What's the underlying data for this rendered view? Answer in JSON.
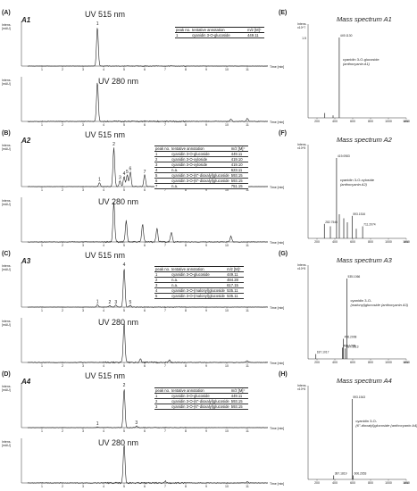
{
  "panels": [
    {
      "label": "(A)",
      "name": "A1",
      "uv515": "UV 515 nm",
      "uv280": "UV 280 nm"
    },
    {
      "label": "(B)",
      "name": "A2",
      "uv515": "UV 515 nm",
      "uv280": "UV 280 nm"
    },
    {
      "label": "(C)",
      "name": "A3",
      "uv515": "UV 515 nm",
      "uv280": "UV 280 nm"
    },
    {
      "label": "(D)",
      "name": "A4",
      "uv515": "UV 515 nm",
      "uv280": "UV 280 nm"
    }
  ],
  "ms_panels": [
    {
      "label": "(E)",
      "title": "Mass spectrum A1"
    },
    {
      "label": "(F)",
      "title": "Mass spectrum A2"
    },
    {
      "label": "(G)",
      "title": "Mass spectrum A3"
    },
    {
      "label": "(H)",
      "title": "Mass spectrum A4"
    }
  ],
  "axis_text": {
    "intens": "Intens.",
    "mau": "[mAU]",
    "x10": "x10",
    "time": "Time [min]"
  },
  "tables": [
    {
      "header": [
        "peak no.",
        "tentative annotation",
        "m/z [M]⁺"
      ],
      "rows": [
        [
          "1",
          "cyanidin 3-O-glucoside",
          "449.11"
        ]
      ]
    },
    {
      "header": [
        "peak no.",
        "tentative annotation",
        "m/z [M]⁺"
      ],
      "rows": [
        [
          "1",
          "cyanidin 3-O-glucoside",
          "449.11"
        ],
        [
          "2",
          "cyanidin 3-O-xyloside",
          "419.10"
        ],
        [
          "3",
          "cyanidin 3-O-xyloside",
          "419.10"
        ],
        [
          "4",
          "n.a.",
          "623.11"
        ],
        [
          "5",
          "cyanidin 3-O-(6''-dioxalyl)glucoside",
          "593.15"
        ],
        [
          "6",
          "cyanidin 3-O-(6''-dioxalyl)glucoside",
          "593.15"
        ],
        [
          "7",
          "n.a.",
          "751.15"
        ]
      ]
    },
    {
      "header": [
        "peak no.",
        "tentative annotation",
        "m/z [M]⁺"
      ],
      "rows": [
        [
          "1",
          "cyanidin 3-O-glucoside",
          "449.11"
        ],
        [
          "2",
          "n.a.",
          "484.28"
        ],
        [
          "3",
          "n.a.",
          "617.15"
        ],
        [
          "4",
          "cyanidin 3-O-(malonyl)glucoside",
          "535.11"
        ],
        [
          "5",
          "cyanidin 3-O-(malonyl)glucoside",
          "535.11"
        ]
      ]
    },
    {
      "header": [
        "peak no.",
        "tentative annotation",
        "m/z [M]⁺"
      ],
      "rows": [
        [
          "1",
          "cyanidin 3-O-glucoside",
          "449.11"
        ],
        [
          "2",
          "cyanidin 3-O-(6''-dioxalyl)glucoside",
          "593.15"
        ],
        [
          "3",
          "cyanidin 3-O-(6''-dioxalyl)glucoside",
          "593.15"
        ]
      ]
    }
  ],
  "chart_data": [
    {
      "type": "line",
      "title": "UV 515 nm",
      "panel": "A1",
      "xlabel": "Time [min]",
      "ylabel": "Intens. [mAU]",
      "xlim": [
        0,
        12
      ],
      "x": [
        1,
        2,
        3,
        4,
        5,
        6,
        7,
        8,
        9,
        10,
        11
      ],
      "peaks": [
        {
          "t": 3.7,
          "h": 1.0,
          "label": "1"
        }
      ]
    },
    {
      "type": "line",
      "title": "UV 280 nm",
      "panel": "A1",
      "xlabel": "Time [min]",
      "ylabel": "Intens. [mAU]",
      "xlim": [
        0,
        12
      ],
      "peaks": [
        {
          "t": 3.7,
          "h": 1.0
        },
        {
          "t": 10.2,
          "h": 0.06
        },
        {
          "t": 11.0,
          "h": 0.08
        }
      ]
    },
    {
      "type": "line",
      "title": "UV 515 nm",
      "panel": "A2",
      "xlim": [
        0,
        12
      ],
      "peaks": [
        {
          "t": 3.8,
          "h": 0.1,
          "label": "1"
        },
        {
          "t": 4.5,
          "h": 1.0,
          "label": "2"
        },
        {
          "t": 4.8,
          "h": 0.15,
          "label": "3"
        },
        {
          "t": 5.0,
          "h": 0.25,
          "label": "4"
        },
        {
          "t": 5.15,
          "h": 0.3,
          "label": "5"
        },
        {
          "t": 5.3,
          "h": 0.38,
          "label": "6"
        },
        {
          "t": 6.0,
          "h": 0.3,
          "label": "7"
        }
      ]
    },
    {
      "type": "line",
      "title": "UV 280 nm",
      "panel": "A2",
      "xlim": [
        0,
        12
      ],
      "peaks": [
        {
          "t": 4.5,
          "h": 1.0
        },
        {
          "t": 5.1,
          "h": 0.55
        },
        {
          "t": 5.9,
          "h": 0.45
        },
        {
          "t": 6.6,
          "h": 0.35
        },
        {
          "t": 7.3,
          "h": 0.25
        },
        {
          "t": 10.2,
          "h": 0.15
        }
      ]
    },
    {
      "type": "line",
      "title": "UV 515 nm",
      "panel": "A3",
      "xlim": [
        0,
        12
      ],
      "peaks": [
        {
          "t": 3.7,
          "h": 0.06,
          "label": "1"
        },
        {
          "t": 4.3,
          "h": 0.04,
          "label": "2"
        },
        {
          "t": 4.6,
          "h": 0.05,
          "label": "3"
        },
        {
          "t": 5.0,
          "h": 1.0,
          "label": "4"
        },
        {
          "t": 5.3,
          "h": 0.05,
          "label": "5"
        }
      ]
    },
    {
      "type": "line",
      "title": "UV 280 nm",
      "panel": "A3",
      "xlim": [
        0,
        12
      ],
      "peaks": [
        {
          "t": 5.0,
          "h": 1.0
        },
        {
          "t": 5.8,
          "h": 0.08
        },
        {
          "t": 7.2,
          "h": 0.06
        },
        {
          "t": 11.0,
          "h": 0.05
        }
      ]
    },
    {
      "type": "line",
      "title": "UV 515 nm",
      "panel": "A4",
      "xlim": [
        0,
        12
      ],
      "peaks": [
        {
          "t": 3.7,
          "h": 0.02,
          "label": "1"
        },
        {
          "t": 5.0,
          "h": 1.0,
          "label": "2"
        },
        {
          "t": 5.6,
          "h": 0.04,
          "label": "3"
        }
      ]
    },
    {
      "type": "line",
      "title": "UV 280 nm",
      "panel": "A4",
      "xlim": [
        0,
        12
      ],
      "peaks": [
        {
          "t": 5.0,
          "h": 1.0
        },
        {
          "t": 7.0,
          "h": 0.05
        },
        {
          "t": 11.0,
          "h": 0.04
        }
      ]
    },
    {
      "type": "bar",
      "title": "Mass spectrum A1",
      "xlim": [
        100,
        1200
      ],
      "ticks": [
        200,
        400,
        600,
        800,
        1000,
        1200
      ],
      "ylabel_scale": "x10^7",
      "ymax_label": "1.5",
      "peaks": [
        {
          "mz": 449.113,
          "h": 1.0,
          "label": "449.1130"
        },
        {
          "mz": 287.0,
          "h": 0.06
        },
        {
          "mz": 380.0,
          "h": 0.03
        }
      ],
      "annotation": "cyanidin 3-O-glucoside (anthocyanin A1)"
    },
    {
      "type": "bar",
      "title": "Mass spectrum A2",
      "xlim": [
        100,
        1200
      ],
      "ticks": [
        200,
        400,
        600,
        800,
        1000,
        1200
      ],
      "ylabel_scale": "x10^5",
      "peaks": [
        {
          "mz": 419.0983,
          "h": 1.0,
          "label": "419.0983"
        },
        {
          "mz": 282.7546,
          "h": 0.18,
          "label": "282.7546"
        },
        {
          "mz": 593.1516,
          "h": 0.28,
          "label": "593.1516"
        },
        {
          "mz": 711.2074,
          "h": 0.15,
          "label": "711.2074"
        },
        {
          "mz": 450,
          "h": 0.3
        },
        {
          "mz": 500,
          "h": 0.25
        },
        {
          "mz": 540,
          "h": 0.2
        },
        {
          "mz": 350,
          "h": 0.15
        },
        {
          "mz": 640,
          "h": 0.12
        }
      ],
      "annotation": "cyanidin 3-O-xyloside (anthocyanin A2)"
    },
    {
      "type": "bar",
      "title": "Mass spectrum A3",
      "xlim": [
        100,
        1200
      ],
      "ticks": [
        200,
        400,
        600,
        800,
        1000,
        1200
      ],
      "ylabel_scale": "x10^5",
      "peaks": [
        {
          "mz": 535.1066,
          "h": 1.0,
          "label": "535.1066"
        },
        {
          "mz": 187.1017,
          "h": 0.06,
          "label": "187.1017"
        },
        {
          "mz": 496.2008,
          "h": 0.25,
          "label": "496.2008"
        },
        {
          "mz": 485.1096,
          "h": 0.14,
          "label": "485.1096"
        },
        {
          "mz": 517.1513,
          "h": 0.13,
          "label": "517.1513"
        }
      ],
      "annotation": "cyanidin 3-O-(malonyl)glucoside (anthocyanin A3)"
    },
    {
      "type": "bar",
      "title": "Mass spectrum A4",
      "xlim": [
        100,
        1200
      ],
      "ticks": [
        200,
        400,
        600,
        800,
        1000,
        1200
      ],
      "ylabel_scale": "x10^6",
      "peaks": [
        {
          "mz": 593.1543,
          "h": 1.0,
          "label": "593.1543"
        },
        {
          "mz": 387.1819,
          "h": 0.05,
          "label": "387.1819"
        },
        {
          "mz": 606.2653,
          "h": 0.05,
          "label": "606.2653"
        }
      ],
      "annotation": "cyanidin 3-O-(6''-dioxalyl)glucoside (anthocyanin A4)"
    }
  ]
}
